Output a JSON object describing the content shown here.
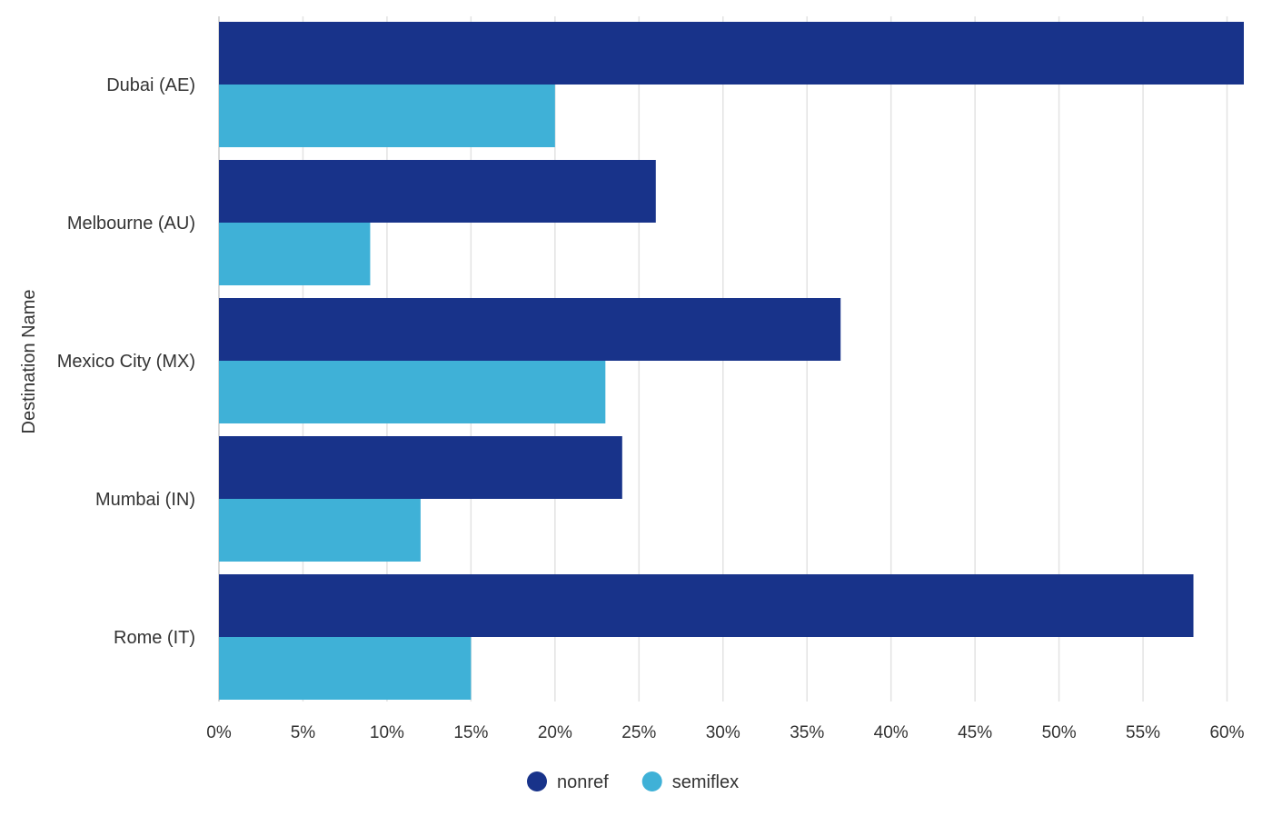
{
  "chart_data": {
    "type": "bar",
    "orientation": "horizontal",
    "ylabel": "Destination Name",
    "xlabel": "",
    "categories": [
      "Dubai (AE)",
      "Melbourne (AU)",
      "Mexico City (MX)",
      "Mumbai (IN)",
      "Rome (IT)"
    ],
    "series": [
      {
        "name": "nonref",
        "color": "#18338a",
        "values": [
          61,
          26,
          37,
          24,
          58
        ]
      },
      {
        "name": "semiflex",
        "color": "#3fb1d7",
        "values": [
          20,
          9,
          23,
          12,
          15
        ]
      }
    ],
    "xlim": [
      0,
      61
    ],
    "xticks": [
      0,
      5,
      10,
      15,
      20,
      25,
      30,
      35,
      40,
      45,
      50,
      55,
      60
    ],
    "xtick_format": "percent",
    "grid": true,
    "legend_position": "bottom-center"
  }
}
